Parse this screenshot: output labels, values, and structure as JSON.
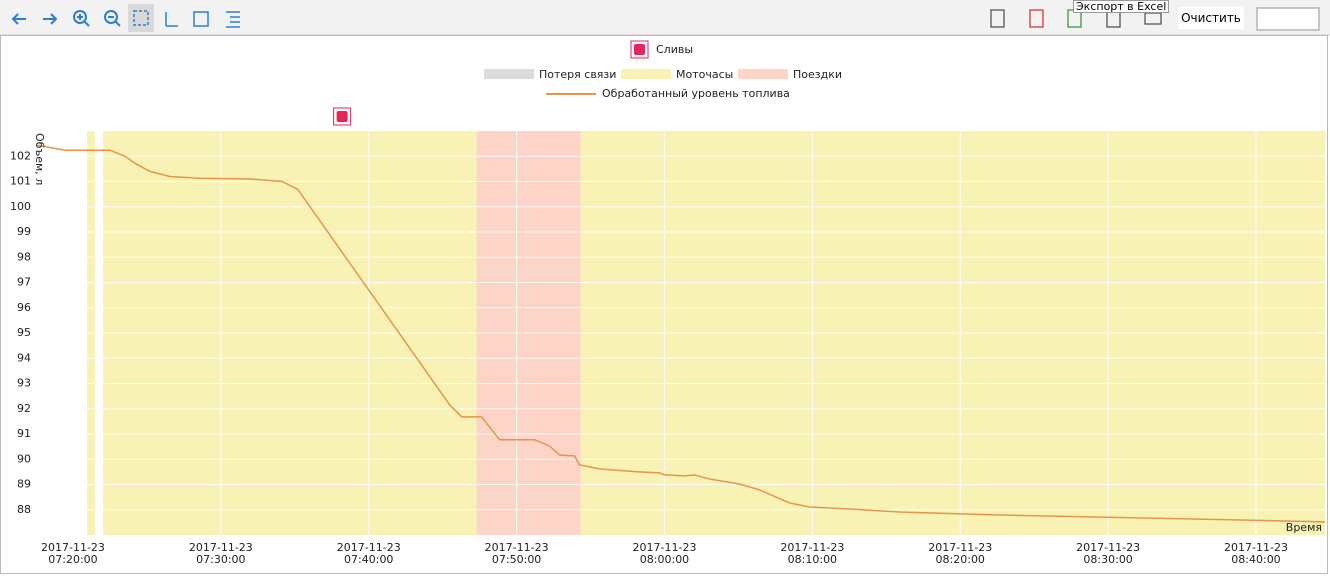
{
  "toolbar": {
    "clear_button": "Очистить",
    "tooltip": "Экспорт в Excel"
  },
  "chart_data": {
    "type": "line",
    "drain_label": "Сливы",
    "drains": [
      "2017-11-23 07:38:10"
    ],
    "drain_color": "#e8245a",
    "y_label": "Объем, л",
    "x_label": "Время",
    "bands": [
      {
        "name": "Потеря связи",
        "color": "#dcdcdc",
        "intervals": []
      },
      {
        "name": "Моточасы",
        "color": "#f8f2b5",
        "intervals": [
          [
            "2017-11-23 07:20:57",
            "2017-11-23 07:21:29"
          ],
          [
            "2017-11-23 07:22:02",
            "2017-11-23 07:47:18"
          ],
          [
            "2017-11-23 07:54:20",
            "2017-11-23 08:44:40"
          ]
        ]
      },
      {
        "name": "Поездки",
        "color": "#fdd5c8",
        "intervals": [
          [
            "2017-11-23 07:47:18",
            "2017-11-23 07:54:20"
          ]
        ]
      }
    ],
    "x": [
      "2017-11-23 07:17:34",
      "2017-11-23 07:19:28",
      "2017-11-23 07:22:30",
      "2017-11-23 07:23:31",
      "2017-11-23 07:24:12",
      "2017-11-23 07:25:12",
      "2017-11-23 07:26:33",
      "2017-11-23 07:28:35",
      "2017-11-23 07:31:58",
      "2017-11-23 07:34:08",
      "2017-11-23 07:35:12",
      "2017-11-23 07:45:28",
      "2017-11-23 07:46:17",
      "2017-11-23 07:47:38",
      "2017-11-23 07:48:51",
      "2017-11-23 07:51:13",
      "2017-11-23 07:52:13",
      "2017-11-23 07:52:54",
      "2017-11-23 07:53:55",
      "2017-11-23 07:54:15",
      "2017-11-23 07:55:36",
      "2017-11-23 07:57:18",
      "2017-11-23 07:58:19",
      "2017-11-23 07:59:40",
      "2017-11-23 08:00:00",
      "2017-11-23 08:01:21",
      "2017-11-23 08:02:02",
      "2017-11-23 08:03:02",
      "2017-11-23 08:05:04",
      "2017-11-23 08:06:25",
      "2017-11-23 08:08:27",
      "2017-11-23 08:09:48",
      "2017-11-23 08:12:30",
      "2017-11-23 08:15:53",
      "2017-11-23 08:22:38",
      "2017-11-23 08:36:09",
      "2017-11-23 08:44:40"
    ],
    "series": [
      {
        "name": "Обработанный уровень топлива",
        "color": "#e8954a",
        "values": [
          102.44,
          102.24,
          102.24,
          102.0,
          101.72,
          101.4,
          101.2,
          101.13,
          101.1,
          101.0,
          100.69,
          92.16,
          91.68,
          91.68,
          90.77,
          90.77,
          90.53,
          90.17,
          90.13,
          89.78,
          89.62,
          89.54,
          89.5,
          89.46,
          89.38,
          89.34,
          89.38,
          89.22,
          89.02,
          88.79,
          88.27,
          88.11,
          88.03,
          87.91,
          87.79,
          87.63,
          87.52
        ]
      }
    ],
    "xlim": [
      "2017-11-23 07:17:34",
      "2017-11-23 08:44:40"
    ],
    "xticks": [
      "2017-11-23 07:20:00",
      "2017-11-23 07:30:00",
      "2017-11-23 07:40:00",
      "2017-11-23 07:50:00",
      "2017-11-23 08:00:00",
      "2017-11-23 08:10:00",
      "2017-11-23 08:20:00",
      "2017-11-23 08:30:00",
      "2017-11-23 08:40:00"
    ],
    "ylim": [
      87,
      103
    ],
    "yticks": [
      88,
      89,
      90,
      91,
      92,
      93,
      94,
      95,
      96,
      97,
      98,
      99,
      100,
      101,
      102
    ],
    "grid": true
  }
}
